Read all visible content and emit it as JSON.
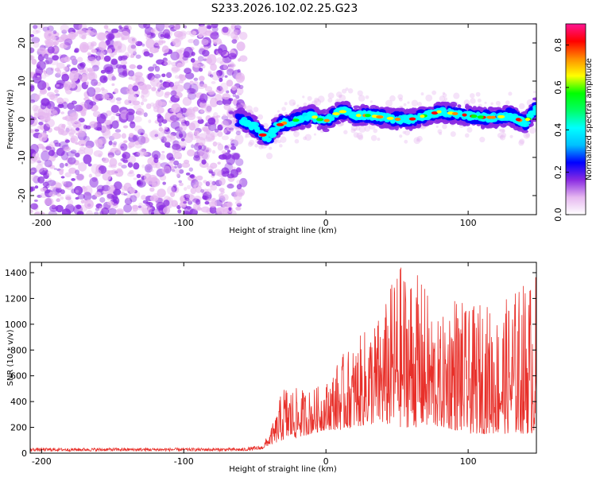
{
  "figure_title": "S233.2026.102.02.25.G23",
  "chart_data": [
    {
      "type": "heatmap",
      "xlabel": "Height of straight line (km)",
      "ylabel": "Frequency (Hz)",
      "xlim": [
        -208,
        148
      ],
      "ylim": [
        -25,
        25
      ],
      "xticks": [
        -200,
        -100,
        0,
        100
      ],
      "yticks": [
        -20,
        -10,
        0,
        10,
        20
      ],
      "noise_region_km": [
        -208,
        -58
      ],
      "ridge": {
        "x": [
          -60,
          -50,
          -45,
          -40,
          -35,
          -30,
          -25,
          -20,
          -15,
          -10,
          -5,
          0,
          5,
          10,
          15,
          20,
          30,
          40,
          50,
          60,
          70,
          80,
          90,
          100,
          110,
          120,
          130,
          140,
          148
        ],
        "freq": [
          0,
          -2,
          -4,
          -5,
          -2,
          -1,
          -1,
          0,
          0.5,
          1,
          0,
          -0.5,
          1,
          2,
          2,
          1,
          1,
          0.5,
          0,
          0,
          1,
          2,
          1.5,
          1,
          0.5,
          0.5,
          1,
          -1,
          3
        ]
      },
      "colorbar": {
        "label": "Normalized spectral amplitude",
        "range": [
          0,
          0.9
        ],
        "ticks": [
          "0.0",
          "0.2",
          "0.4",
          "0.6",
          "0.8"
        ],
        "colors": [
          "#ffffff",
          "#e6b8f0",
          "#8a2be2",
          "#0000ff",
          "#00bfff",
          "#00ffff",
          "#00ff66",
          "#00ff00",
          "#ffff00",
          "#ff8c00",
          "#ff0000",
          "#ff1493"
        ]
      }
    },
    {
      "type": "line",
      "xlabel": "Height of straight line (km)",
      "ylabel": "SNR (10 * v/v)",
      "xlim": [
        -208,
        148
      ],
      "ylim": [
        0,
        1480
      ],
      "xticks": [
        -200,
        -100,
        0,
        100
      ],
      "yticks": [
        0,
        200,
        400,
        600,
        800,
        1000,
        1200,
        1400
      ],
      "color": "#e8302a",
      "envelope": {
        "x": [
          -208,
          -60,
          -45,
          -40,
          -35,
          -30,
          -20,
          -10,
          0,
          10,
          20,
          30,
          40,
          50,
          60,
          70,
          80,
          90,
          100,
          110,
          120,
          130,
          140,
          148
        ],
        "min": [
          15,
          15,
          30,
          60,
          80,
          100,
          120,
          150,
          180,
          180,
          200,
          220,
          220,
          200,
          200,
          200,
          200,
          180,
          150,
          150,
          150,
          150,
          150,
          150
        ],
        "max": [
          40,
          40,
          60,
          160,
          300,
          550,
          500,
          500,
          550,
          750,
          850,
          1000,
          1100,
          1480,
          1450,
          1300,
          1000,
          1300,
          1100,
          1200,
          1100,
          1250,
          1350,
          1400
        ]
      }
    }
  ]
}
